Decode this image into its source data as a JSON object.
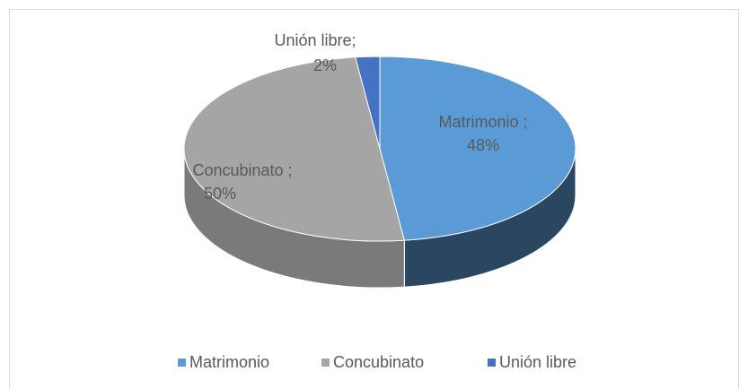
{
  "chart_data": {
    "type": "pie3d",
    "categories": [
      "Matrimonio",
      "Concubinato",
      "Unión libre"
    ],
    "values": [
      48,
      50,
      2
    ],
    "value_labels": [
      "48%",
      "50%",
      "2%"
    ],
    "data_labels": [
      "Matrimonio ;",
      "Concubinato ;",
      "Unión libre;"
    ],
    "colors": [
      "#5b9bd5",
      "#a5a5a5",
      "#4472c4"
    ],
    "side_colors": [
      "#2b4660",
      "#7a7a7a",
      "#2f4f8a"
    ],
    "legend": "bottom"
  }
}
